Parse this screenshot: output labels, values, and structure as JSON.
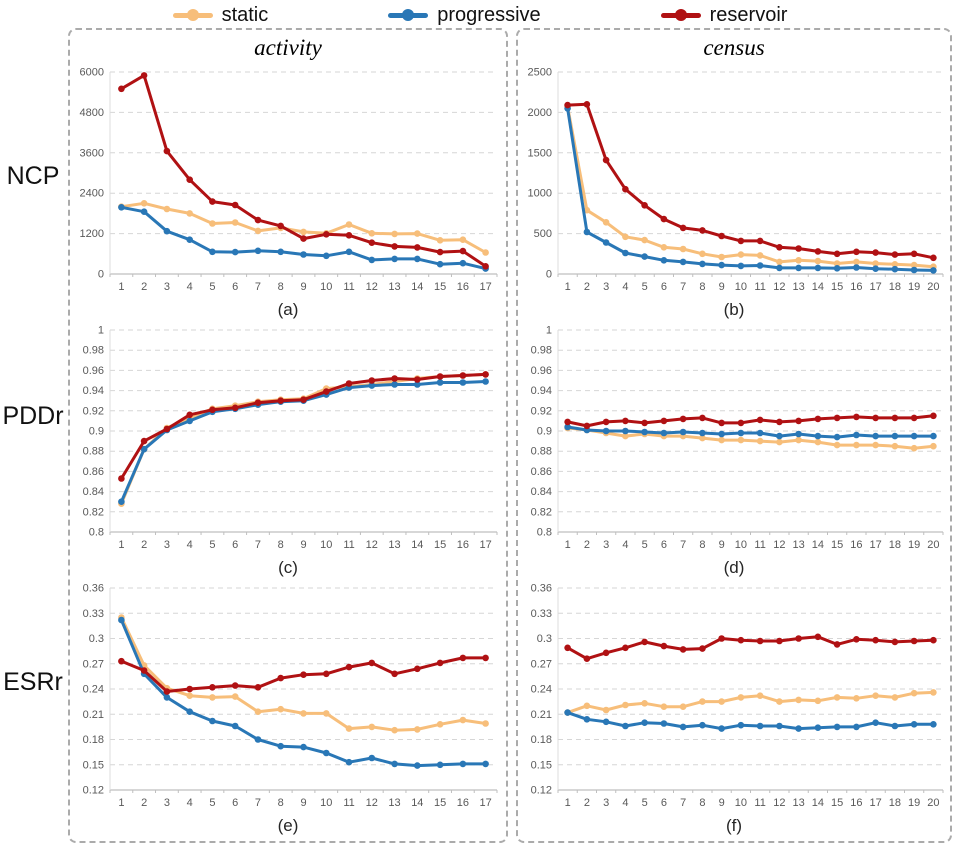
{
  "legend": {
    "position": "top",
    "items": [
      {
        "label": "static",
        "color": "#F7BE7A"
      },
      {
        "label": "progressive",
        "color": "#2977B6"
      },
      {
        "label": "reservoir",
        "color": "#B01113"
      }
    ]
  },
  "row_labels": [
    "NCP",
    "PDDr",
    "ESRr"
  ],
  "columns": [
    {
      "title": "activity"
    },
    {
      "title": "census"
    }
  ],
  "style": {
    "grid": "horizontal-dashed",
    "gridline_color": "#D6D6D6",
    "axis_color": "#BFBFBF",
    "tick_label_color": "#595959"
  },
  "chart_data": [
    {
      "id": "a",
      "caption": "(a)",
      "type": "line",
      "dataset": "activity",
      "metric": "NCP",
      "xlabel": "",
      "ylabel": "NCP",
      "x": [
        1,
        2,
        3,
        4,
        5,
        6,
        7,
        8,
        9,
        10,
        11,
        12,
        13,
        14,
        15,
        16,
        17
      ],
      "ylim": [
        0,
        6000
      ],
      "ytick_values": [
        0,
        1200,
        2400,
        3600,
        4800,
        6000
      ],
      "ytick_labels": [
        "0",
        "1200",
        "2400",
        "3600",
        "4800",
        "6000"
      ],
      "series": [
        {
          "name": "static",
          "values": [
            2000,
            2100,
            1930,
            1800,
            1500,
            1530,
            1280,
            1370,
            1250,
            1210,
            1470,
            1210,
            1190,
            1200,
            1000,
            1020,
            640
          ]
        },
        {
          "name": "progressive",
          "values": [
            1980,
            1850,
            1270,
            1020,
            660,
            650,
            690,
            660,
            580,
            540,
            660,
            420,
            450,
            450,
            290,
            320,
            160
          ]
        },
        {
          "name": "reservoir",
          "values": [
            5500,
            5900,
            3650,
            2800,
            2150,
            2050,
            1600,
            1430,
            1050,
            1180,
            1150,
            930,
            820,
            790,
            650,
            680,
            230
          ]
        }
      ]
    },
    {
      "id": "b",
      "caption": "(b)",
      "type": "line",
      "dataset": "census",
      "metric": "NCP",
      "xlabel": "",
      "ylabel": "NCP",
      "x": [
        1,
        2,
        3,
        4,
        5,
        6,
        7,
        8,
        9,
        10,
        11,
        12,
        13,
        14,
        15,
        16,
        17,
        18,
        19,
        20
      ],
      "ylim": [
        0,
        2500
      ],
      "ytick_values": [
        0,
        500,
        1000,
        1500,
        2000,
        2500
      ],
      "ytick_labels": [
        "0",
        "500",
        "1000",
        "1500",
        "2000",
        "2500"
      ],
      "series": [
        {
          "name": "static",
          "values": [
            2070,
            790,
            640,
            460,
            420,
            330,
            310,
            250,
            210,
            240,
            230,
            150,
            170,
            160,
            130,
            150,
            130,
            120,
            110,
            90
          ]
        },
        {
          "name": "progressive",
          "values": [
            2050,
            520,
            390,
            260,
            215,
            170,
            150,
            125,
            110,
            100,
            105,
            75,
            75,
            75,
            70,
            80,
            65,
            60,
            50,
            45
          ]
        },
        {
          "name": "reservoir",
          "values": [
            2090,
            2100,
            1410,
            1050,
            850,
            680,
            570,
            540,
            470,
            410,
            410,
            330,
            315,
            280,
            250,
            275,
            265,
            240,
            250,
            200
          ]
        }
      ]
    },
    {
      "id": "c",
      "caption": "(c)",
      "type": "line",
      "dataset": "activity",
      "metric": "PDDr",
      "xlabel": "",
      "ylabel": "PDDr",
      "x": [
        1,
        2,
        3,
        4,
        5,
        6,
        7,
        8,
        9,
        10,
        11,
        12,
        13,
        14,
        15,
        16,
        17
      ],
      "ylim": [
        0.8,
        1.0
      ],
      "ytick_values": [
        0.8,
        0.82,
        0.84,
        0.86,
        0.88,
        0.9,
        0.92,
        0.94,
        0.96,
        0.98,
        1
      ],
      "ytick_labels": [
        "0.8",
        "0.82",
        "0.84",
        "0.86",
        "0.88",
        "0.9",
        "0.92",
        "0.94",
        "0.96",
        "0.98",
        "1"
      ],
      "series": [
        {
          "name": "static",
          "values": [
            0.828,
            0.882,
            0.903,
            0.913,
            0.922,
            0.925,
            0.929,
            0.931,
            0.932,
            0.942,
            0.944,
            0.946,
            0.949,
            0.952,
            0.954,
            0.955,
            0.956
          ]
        },
        {
          "name": "progressive",
          "values": [
            0.83,
            0.882,
            0.901,
            0.91,
            0.919,
            0.922,
            0.926,
            0.929,
            0.93,
            0.936,
            0.943,
            0.945,
            0.946,
            0.946,
            0.948,
            0.948,
            0.949
          ]
        },
        {
          "name": "reservoir",
          "values": [
            0.853,
            0.89,
            0.902,
            0.916,
            0.921,
            0.923,
            0.928,
            0.93,
            0.931,
            0.939,
            0.947,
            0.95,
            0.952,
            0.951,
            0.954,
            0.955,
            0.956
          ]
        }
      ]
    },
    {
      "id": "d",
      "caption": "(d)",
      "type": "line",
      "dataset": "census",
      "metric": "PDDr",
      "xlabel": "",
      "ylabel": "PDDr",
      "x": [
        1,
        2,
        3,
        4,
        5,
        6,
        7,
        8,
        9,
        10,
        11,
        12,
        13,
        14,
        15,
        16,
        17,
        18,
        19,
        20
      ],
      "ylim": [
        0.8,
        1.0
      ],
      "ytick_values": [
        0.8,
        0.82,
        0.84,
        0.86,
        0.88,
        0.9,
        0.92,
        0.94,
        0.96,
        0.98,
        1
      ],
      "ytick_labels": [
        "0.8",
        "0.82",
        "0.84",
        "0.86",
        "0.88",
        "0.9",
        "0.92",
        "0.94",
        "0.96",
        "0.98",
        "1"
      ],
      "series": [
        {
          "name": "static",
          "values": [
            0.903,
            0.901,
            0.898,
            0.895,
            0.897,
            0.895,
            0.895,
            0.893,
            0.891,
            0.891,
            0.89,
            0.889,
            0.891,
            0.889,
            0.886,
            0.886,
            0.886,
            0.885,
            0.883,
            0.885
          ]
        },
        {
          "name": "progressive",
          "values": [
            0.904,
            0.901,
            0.9,
            0.9,
            0.899,
            0.898,
            0.899,
            0.898,
            0.897,
            0.898,
            0.898,
            0.895,
            0.897,
            0.895,
            0.894,
            0.896,
            0.895,
            0.895,
            0.895,
            0.895
          ]
        },
        {
          "name": "reservoir",
          "values": [
            0.909,
            0.905,
            0.909,
            0.91,
            0.908,
            0.91,
            0.912,
            0.913,
            0.908,
            0.908,
            0.911,
            0.909,
            0.91,
            0.912,
            0.913,
            0.914,
            0.913,
            0.913,
            0.913,
            0.915
          ]
        }
      ]
    },
    {
      "id": "e",
      "caption": "(e)",
      "type": "line",
      "dataset": "activity",
      "metric": "ESRr",
      "xlabel": "",
      "ylabel": "ESRr",
      "x": [
        1,
        2,
        3,
        4,
        5,
        6,
        7,
        8,
        9,
        10,
        11,
        12,
        13,
        14,
        15,
        16,
        17
      ],
      "ylim": [
        0.12,
        0.36
      ],
      "ytick_values": [
        0.12,
        0.15,
        0.18,
        0.21,
        0.24,
        0.27,
        0.3,
        0.33,
        0.36
      ],
      "ytick_labels": [
        "0.12",
        "0.15",
        "0.18",
        "0.21",
        "0.24",
        "0.27",
        "0.3",
        "0.33",
        "0.36"
      ],
      "series": [
        {
          "name": "static",
          "values": [
            0.325,
            0.268,
            0.241,
            0.232,
            0.23,
            0.231,
            0.213,
            0.216,
            0.211,
            0.211,
            0.193,
            0.195,
            0.191,
            0.192,
            0.198,
            0.203,
            0.199
          ]
        },
        {
          "name": "progressive",
          "values": [
            0.322,
            0.258,
            0.23,
            0.213,
            0.202,
            0.196,
            0.18,
            0.172,
            0.171,
            0.164,
            0.153,
            0.158,
            0.151,
            0.149,
            0.15,
            0.151,
            0.151
          ]
        },
        {
          "name": "reservoir",
          "values": [
            0.273,
            0.262,
            0.237,
            0.24,
            0.242,
            0.244,
            0.242,
            0.253,
            0.257,
            0.258,
            0.266,
            0.271,
            0.258,
            0.264,
            0.271,
            0.277,
            0.277
          ]
        }
      ]
    },
    {
      "id": "f",
      "caption": "(f)",
      "type": "line",
      "dataset": "census",
      "metric": "ESRr",
      "xlabel": "",
      "ylabel": "ESRr",
      "x": [
        1,
        2,
        3,
        4,
        5,
        6,
        7,
        8,
        9,
        10,
        11,
        12,
        13,
        14,
        15,
        16,
        17,
        18,
        19,
        20
      ],
      "ylim": [
        0.12,
        0.36
      ],
      "ytick_values": [
        0.12,
        0.15,
        0.18,
        0.21,
        0.24,
        0.27,
        0.3,
        0.33,
        0.36
      ],
      "ytick_labels": [
        "0.12",
        "0.15",
        "0.18",
        "0.21",
        "0.24",
        "0.27",
        "0.3",
        "0.33",
        "0.36"
      ],
      "series": [
        {
          "name": "static",
          "values": [
            0.212,
            0.22,
            0.215,
            0.221,
            0.223,
            0.219,
            0.219,
            0.225,
            0.225,
            0.23,
            0.232,
            0.225,
            0.227,
            0.226,
            0.23,
            0.229,
            0.232,
            0.23,
            0.235,
            0.236
          ]
        },
        {
          "name": "progressive",
          "values": [
            0.212,
            0.204,
            0.201,
            0.196,
            0.2,
            0.199,
            0.195,
            0.197,
            0.193,
            0.197,
            0.196,
            0.196,
            0.193,
            0.194,
            0.195,
            0.195,
            0.2,
            0.196,
            0.198,
            0.198
          ]
        },
        {
          "name": "reservoir",
          "values": [
            0.289,
            0.276,
            0.283,
            0.289,
            0.296,
            0.291,
            0.287,
            0.288,
            0.3,
            0.298,
            0.297,
            0.297,
            0.3,
            0.302,
            0.293,
            0.299,
            0.298,
            0.296,
            0.297,
            0.298
          ]
        }
      ]
    }
  ]
}
